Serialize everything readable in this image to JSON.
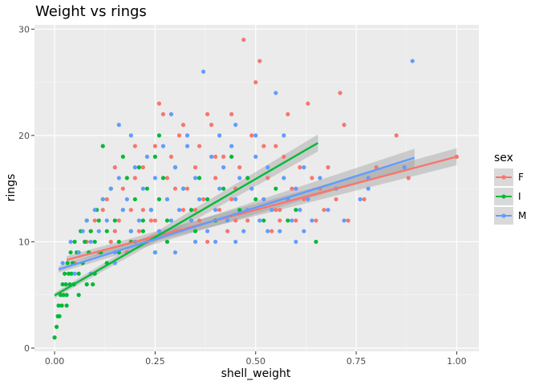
{
  "chart_data": {
    "type": "scatter",
    "title": "Weight vs rings",
    "xlabel": "shell_weight",
    "ylabel": "rings",
    "xlim": [
      -0.05,
      1.055
    ],
    "ylim": [
      -0.3,
      30.4
    ],
    "x_ticks": [
      0.0,
      0.25,
      0.5,
      0.75,
      1.0
    ],
    "x_tick_labels": [
      "0.00",
      "0.25",
      "0.50",
      "0.75",
      "1.00"
    ],
    "y_ticks": [
      0,
      10,
      20,
      30
    ],
    "y_tick_labels": [
      "0",
      "10",
      "20",
      "30"
    ],
    "grid": true,
    "legend": {
      "title": "sex",
      "placement": "right",
      "items": [
        {
          "key": "F",
          "label": "F",
          "color": "#F8766D"
        },
        {
          "key": "I",
          "label": "I",
          "color": "#00BA38"
        },
        {
          "key": "M",
          "label": "M",
          "color": "#619CFF"
        }
      ]
    },
    "colors": {
      "panel_bg": "#EBEBEB",
      "grid_major": "#FFFFFF",
      "ribbon": "#999999"
    },
    "series": [
      {
        "key": "F",
        "color": "#F8766D",
        "fit": {
          "x": [
            0.03,
            1.0
          ],
          "y": [
            8.3,
            18.0
          ],
          "se": [
            0.35,
            0.8
          ]
        },
        "points": [
          [
            0.05,
            8
          ],
          [
            0.06,
            9
          ],
          [
            0.08,
            10
          ],
          [
            0.09,
            11
          ],
          [
            0.1,
            12
          ],
          [
            0.11,
            9
          ],
          [
            0.12,
            13
          ],
          [
            0.13,
            14
          ],
          [
            0.14,
            10
          ],
          [
            0.15,
            11
          ],
          [
            0.16,
            12
          ],
          [
            0.17,
            15
          ],
          [
            0.18,
            9
          ],
          [
            0.19,
            13
          ],
          [
            0.2,
            16
          ],
          [
            0.21,
            11
          ],
          [
            0.22,
            17
          ],
          [
            0.23,
            10
          ],
          [
            0.24,
            12
          ],
          [
            0.25,
            19
          ],
          [
            0.26,
            23
          ],
          [
            0.27,
            22
          ],
          [
            0.28,
            14
          ],
          [
            0.29,
            18
          ],
          [
            0.3,
            11
          ],
          [
            0.31,
            20
          ],
          [
            0.32,
            13
          ],
          [
            0.33,
            15
          ],
          [
            0.34,
            12
          ],
          [
            0.35,
            17
          ],
          [
            0.36,
            19
          ],
          [
            0.37,
            14
          ],
          [
            0.38,
            10
          ],
          [
            0.39,
            21
          ],
          [
            0.4,
            16
          ],
          [
            0.41,
            13
          ],
          [
            0.42,
            18
          ],
          [
            0.43,
            11
          ],
          [
            0.44,
            22
          ],
          [
            0.45,
            15
          ],
          [
            0.46,
            17
          ],
          [
            0.47,
            29
          ],
          [
            0.48,
            12
          ],
          [
            0.49,
            20
          ],
          [
            0.5,
            25
          ],
          [
            0.51,
            27
          ],
          [
            0.52,
            14
          ],
          [
            0.53,
            16
          ],
          [
            0.54,
            11
          ],
          [
            0.55,
            19
          ],
          [
            0.56,
            13
          ],
          [
            0.57,
            18
          ],
          [
            0.58,
            22
          ],
          [
            0.59,
            15
          ],
          [
            0.6,
            12
          ],
          [
            0.61,
            17
          ],
          [
            0.62,
            14
          ],
          [
            0.63,
            23
          ],
          [
            0.64,
            16
          ],
          [
            0.65,
            12
          ],
          [
            0.66,
            15
          ],
          [
            0.67,
            13
          ],
          [
            0.68,
            17
          ],
          [
            0.7,
            14
          ],
          [
            0.71,
            24
          ],
          [
            0.72,
            21
          ],
          [
            0.73,
            12
          ],
          [
            0.77,
            14
          ],
          [
            0.8,
            17
          ],
          [
            0.85,
            20
          ],
          [
            0.88,
            16
          ],
          [
            1.0,
            18
          ],
          [
            0.15,
            17
          ],
          [
            0.2,
            19
          ],
          [
            0.22,
            13
          ],
          [
            0.28,
            16
          ],
          [
            0.32,
            21
          ],
          [
            0.36,
            12
          ],
          [
            0.4,
            18
          ],
          [
            0.44,
            14
          ],
          [
            0.48,
            16
          ],
          [
            0.52,
            19
          ],
          [
            0.56,
            12
          ],
          [
            0.6,
            15
          ],
          [
            0.25,
            12
          ],
          [
            0.3,
            15
          ],
          [
            0.35,
            13
          ],
          [
            0.45,
            12
          ],
          [
            0.55,
            13
          ],
          [
            0.38,
            22
          ]
        ]
      },
      {
        "key": "I",
        "color": "#00BA38",
        "fit": {
          "x": [
            0.0,
            0.655
          ],
          "y": [
            4.95,
            19.3
          ],
          "se": [
            0.25,
            0.8
          ]
        },
        "points": [
          [
            0.0,
            1
          ],
          [
            0.005,
            2
          ],
          [
            0.008,
            3
          ],
          [
            0.01,
            4
          ],
          [
            0.012,
            3
          ],
          [
            0.015,
            5
          ],
          [
            0.018,
            4
          ],
          [
            0.02,
            6
          ],
          [
            0.022,
            5
          ],
          [
            0.025,
            7
          ],
          [
            0.028,
            6
          ],
          [
            0.03,
            5
          ],
          [
            0.032,
            8
          ],
          [
            0.035,
            7
          ],
          [
            0.038,
            6
          ],
          [
            0.04,
            9
          ],
          [
            0.042,
            7
          ],
          [
            0.045,
            8
          ],
          [
            0.048,
            6
          ],
          [
            0.05,
            10
          ],
          [
            0.055,
            9
          ],
          [
            0.06,
            7
          ],
          [
            0.065,
            11
          ],
          [
            0.07,
            8
          ],
          [
            0.075,
            10
          ],
          [
            0.08,
            12
          ],
          [
            0.085,
            9
          ],
          [
            0.09,
            11
          ],
          [
            0.095,
            6
          ],
          [
            0.1,
            10
          ],
          [
            0.105,
            13
          ],
          [
            0.11,
            12
          ],
          [
            0.115,
            9
          ],
          [
            0.12,
            14
          ],
          [
            0.13,
            11
          ],
          [
            0.14,
            15
          ],
          [
            0.15,
            12
          ],
          [
            0.16,
            10
          ],
          [
            0.17,
            13
          ],
          [
            0.18,
            16
          ],
          [
            0.19,
            11
          ],
          [
            0.2,
            14
          ],
          [
            0.21,
            17
          ],
          [
            0.22,
            12
          ],
          [
            0.23,
            15
          ],
          [
            0.24,
            13
          ],
          [
            0.25,
            18
          ],
          [
            0.26,
            14
          ],
          [
            0.27,
            16
          ],
          [
            0.28,
            12
          ],
          [
            0.3,
            17
          ],
          [
            0.32,
            15
          ],
          [
            0.34,
            13
          ],
          [
            0.36,
            16
          ],
          [
            0.38,
            14
          ],
          [
            0.4,
            12
          ],
          [
            0.42,
            15
          ],
          [
            0.44,
            18
          ],
          [
            0.46,
            13
          ],
          [
            0.48,
            16
          ],
          [
            0.5,
            14
          ],
          [
            0.52,
            12
          ],
          [
            0.55,
            15
          ],
          [
            0.6,
            13
          ],
          [
            0.65,
            10
          ],
          [
            0.12,
            19
          ],
          [
            0.17,
            18
          ],
          [
            0.26,
            20
          ],
          [
            0.03,
            4
          ],
          [
            0.06,
            5
          ],
          [
            0.08,
            6
          ],
          [
            0.1,
            7
          ],
          [
            0.13,
            8
          ],
          [
            0.16,
            9
          ],
          [
            0.19,
            10
          ],
          [
            0.22,
            11
          ],
          [
            0.25,
            9
          ],
          [
            0.28,
            10
          ],
          [
            0.35,
            11
          ],
          [
            0.58,
            12
          ]
        ]
      },
      {
        "key": "M",
        "color": "#619CFF",
        "fit": {
          "x": [
            0.01,
            0.895
          ],
          "y": [
            7.4,
            17.9
          ],
          "se": [
            0.3,
            0.85
          ]
        },
        "points": [
          [
            0.02,
            8
          ],
          [
            0.04,
            10
          ],
          [
            0.05,
            7
          ],
          [
            0.06,
            9
          ],
          [
            0.07,
            11
          ],
          [
            0.08,
            12
          ],
          [
            0.09,
            10
          ],
          [
            0.1,
            13
          ],
          [
            0.11,
            11
          ],
          [
            0.12,
            14
          ],
          [
            0.13,
            12
          ],
          [
            0.14,
            15
          ],
          [
            0.15,
            9
          ],
          [
            0.16,
            16
          ],
          [
            0.17,
            13
          ],
          [
            0.18,
            14
          ],
          [
            0.19,
            11
          ],
          [
            0.2,
            17
          ],
          [
            0.21,
            12
          ],
          [
            0.22,
            15
          ],
          [
            0.23,
            18
          ],
          [
            0.24,
            13
          ],
          [
            0.25,
            16
          ],
          [
            0.26,
            11
          ],
          [
            0.27,
            19
          ],
          [
            0.28,
            14
          ],
          [
            0.29,
            12
          ],
          [
            0.3,
            17
          ],
          [
            0.31,
            13
          ],
          [
            0.32,
            15
          ],
          [
            0.33,
            20
          ],
          [
            0.34,
            12
          ],
          [
            0.35,
            16
          ],
          [
            0.36,
            14
          ],
          [
            0.37,
            26
          ],
          [
            0.38,
            11
          ],
          [
            0.39,
            18
          ],
          [
            0.4,
            13
          ],
          [
            0.41,
            15
          ],
          [
            0.42,
            17
          ],
          [
            0.43,
            12
          ],
          [
            0.44,
            19
          ],
          [
            0.45,
            14
          ],
          [
            0.46,
            16
          ],
          [
            0.47,
            11
          ],
          [
            0.48,
            13
          ],
          [
            0.49,
            15
          ],
          [
            0.5,
            18
          ],
          [
            0.51,
            12
          ],
          [
            0.52,
            14
          ],
          [
            0.53,
            17
          ],
          [
            0.54,
            13
          ],
          [
            0.55,
            24
          ],
          [
            0.56,
            11
          ],
          [
            0.57,
            16
          ],
          [
            0.58,
            14
          ],
          [
            0.59,
            12
          ],
          [
            0.6,
            15
          ],
          [
            0.61,
            13
          ],
          [
            0.62,
            17
          ],
          [
            0.63,
            14
          ],
          [
            0.64,
            12
          ],
          [
            0.66,
            16
          ],
          [
            0.68,
            13
          ],
          [
            0.7,
            15
          ],
          [
            0.72,
            12
          ],
          [
            0.76,
            14
          ],
          [
            0.78,
            16
          ],
          [
            0.78,
            15
          ],
          [
            0.87,
            17
          ],
          [
            0.89,
            27
          ],
          [
            0.16,
            21
          ],
          [
            0.19,
            20
          ],
          [
            0.29,
            22
          ],
          [
            0.33,
            19
          ],
          [
            0.41,
            20
          ],
          [
            0.45,
            21
          ],
          [
            0.5,
            20
          ],
          [
            0.57,
            20
          ],
          [
            0.25,
            9
          ],
          [
            0.35,
            10
          ],
          [
            0.45,
            10
          ],
          [
            0.15,
            8
          ],
          [
            0.09,
            7
          ],
          [
            0.53,
            11
          ],
          [
            0.62,
            11
          ],
          [
            0.3,
            9
          ],
          [
            0.4,
            10
          ],
          [
            0.2,
            10
          ],
          [
            0.6,
            10
          ]
        ]
      }
    ]
  }
}
